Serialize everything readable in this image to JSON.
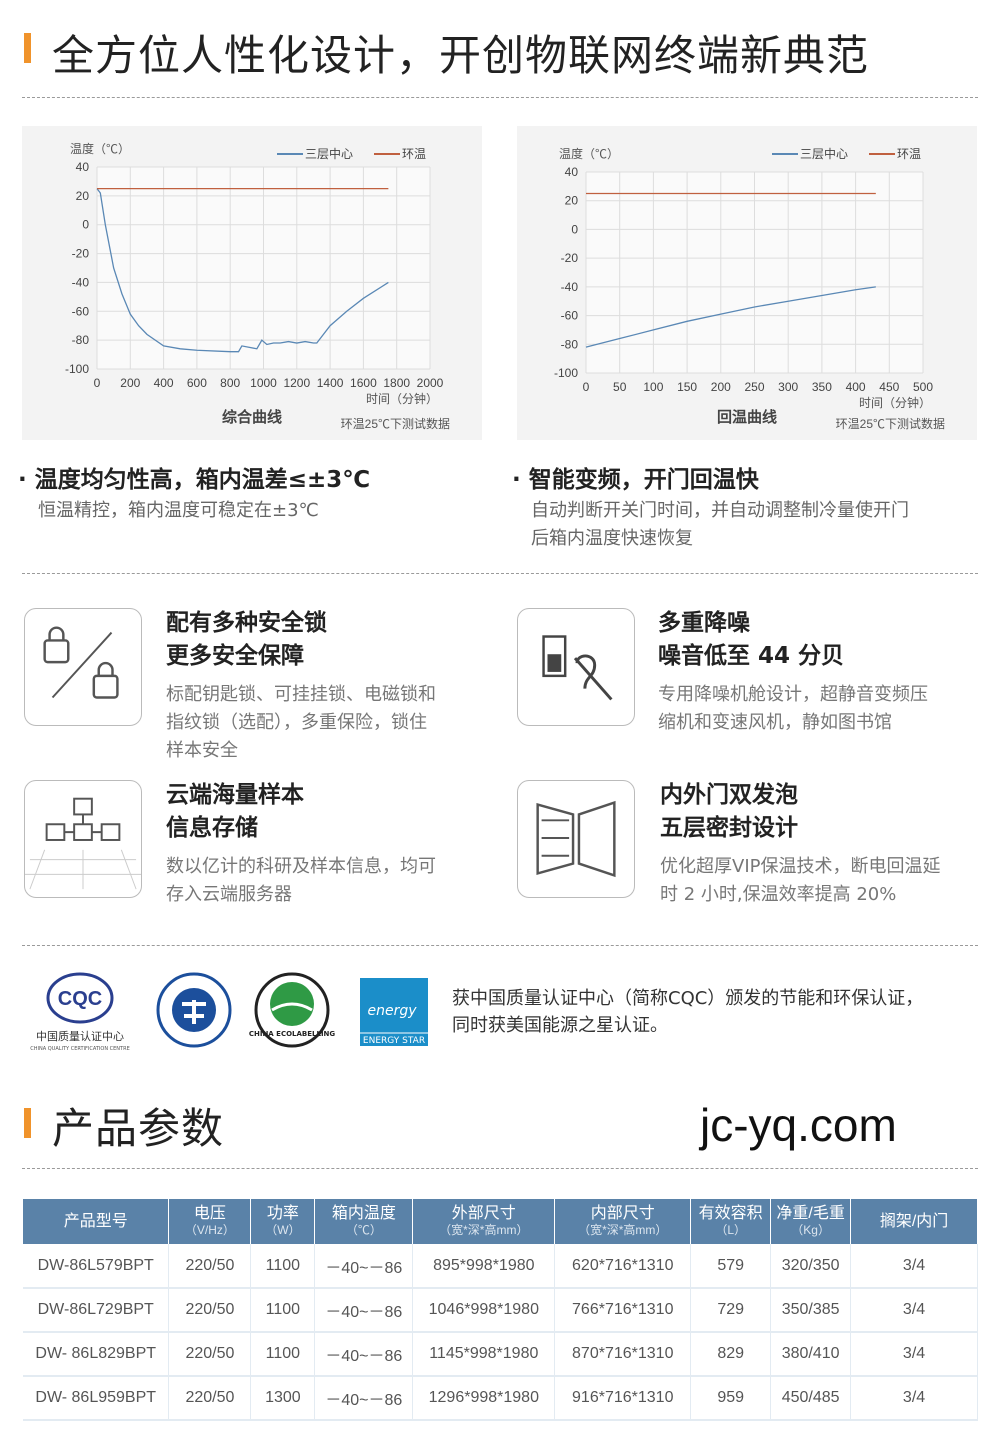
{
  "header": {
    "title": "全方位人性化设计，开创物联网终端新典范"
  },
  "chart_data": [
    {
      "type": "line",
      "title": "综合曲线",
      "note": "环温25℃下测试数据",
      "ylabel": "温度（℃）",
      "xlabel": "时间（分钟）",
      "xlim": [
        0,
        2000
      ],
      "ylim": [
        -100,
        40
      ],
      "xticks": [
        0,
        200,
        400,
        600,
        800,
        1000,
        1200,
        1400,
        1600,
        1800,
        2000
      ],
      "yticks": [
        40,
        20,
        0,
        -20,
        -40,
        -60,
        -80,
        -100
      ],
      "grid": true,
      "legend": "top-right",
      "series": [
        {
          "name": "三层中心",
          "color": "#5a88b5",
          "x": [
            0,
            20,
            50,
            100,
            150,
            200,
            250,
            300,
            400,
            500,
            600,
            800,
            850,
            870,
            960,
            990,
            1020,
            1060,
            1100,
            1150,
            1200,
            1250,
            1300,
            1320,
            1400,
            1500,
            1600,
            1750
          ],
          "y": [
            25,
            22,
            0,
            -30,
            -48,
            -62,
            -70,
            -76,
            -84,
            -86,
            -87,
            -88,
            -88,
            -84,
            -86,
            -80,
            -83,
            -82,
            -82,
            -81,
            -82,
            -81,
            -82,
            -82,
            -70,
            -60,
            -51,
            -40
          ]
        },
        {
          "name": "环温",
          "color": "#c0603f",
          "x": [
            0,
            1750
          ],
          "y": [
            25,
            25
          ]
        }
      ]
    },
    {
      "type": "line",
      "title": "回温曲线",
      "note": "环温25℃下测试数据",
      "ylabel": "温度（℃）",
      "xlabel": "时间（分钟）",
      "xlim": [
        0,
        500
      ],
      "ylim": [
        -100,
        40
      ],
      "xticks": [
        0,
        50,
        100,
        150,
        200,
        250,
        300,
        350,
        400,
        450,
        500
      ],
      "yticks": [
        40,
        20,
        0,
        -20,
        -40,
        -60,
        -80,
        -100
      ],
      "grid": true,
      "legend": "top-right",
      "series": [
        {
          "name": "三层中心",
          "color": "#5a88b5",
          "x": [
            0,
            50,
            100,
            150,
            200,
            250,
            300,
            350,
            400,
            430
          ],
          "y": [
            -82,
            -76,
            -70,
            -64,
            -59,
            -54,
            -50,
            -46,
            -42,
            -40
          ]
        },
        {
          "name": "环温",
          "color": "#c0603f",
          "x": [
            0,
            430
          ],
          "y": [
            25,
            25
          ]
        }
      ]
    }
  ],
  "features": [
    {
      "title": "· 温度均匀性高，箱内温差≤±3℃",
      "desc": [
        "恒温精控，箱内温度可稳定在±3℃"
      ]
    },
    {
      "title": "· 智能变频，开门回温快",
      "desc": [
        "自动判断开关门时间，并自动调整制冷量使开门",
        "后箱内温度快速恢复"
      ]
    }
  ],
  "cards": [
    {
      "icon": "lock-icon",
      "title": [
        "配有多种安全锁",
        "更多安全保障"
      ],
      "desc": [
        "标配钥匙锁、可挂挂锁、电磁锁和",
        "指纹锁（选配），多重保险，锁住",
        "样本安全"
      ]
    },
    {
      "icon": "noise-reduction-icon",
      "title": [
        "多重降噪",
        "噪音低至 44 分贝"
      ],
      "desc": [
        "专用降噪机舱设计，超静音变频压",
        "缩机和变速风机，静如图书馆"
      ]
    },
    {
      "icon": "cloud-storage-icon",
      "title": [
        "云端海量样本",
        "信息存储"
      ],
      "desc": [
        "数以亿计的科研及样本信息，均可",
        "存入云端服务器"
      ]
    },
    {
      "icon": "door-icon",
      "title": [
        "内外门双发泡",
        "五层密封设计"
      ],
      "desc": [
        "优化超厚VIP保温技术，断电回温延",
        "时 2 小时,保温效率提高 20%"
      ]
    }
  ],
  "certs": {
    "logos": [
      "中国质量认证中心",
      "CHINA QUALITY CERTIFICATION CENTRE",
      "CQC",
      "CHINA ECOLABELLING",
      "ENERGY STAR"
    ],
    "text": [
      "获中国质量认证中心（简称CQC）颁发的节能和环保认证，",
      "同时获美国能源之星认证。"
    ]
  },
  "params": {
    "title": "产品参数",
    "headers": [
      [
        "产品型号",
        ""
      ],
      [
        "电压",
        "（V/Hz）"
      ],
      [
        "功率",
        "（W）"
      ],
      [
        "箱内温度",
        "（℃）"
      ],
      [
        "外部尺寸",
        "（宽*深*高mm）"
      ],
      [
        "内部尺寸",
        "（宽*深*高mm）"
      ],
      [
        "有效容积",
        "（L）"
      ],
      [
        "净重/毛重",
        "（Kg）"
      ],
      [
        "搁架/内门",
        ""
      ]
    ],
    "rows": [
      [
        "DW-86L579BPT",
        "220/50",
        "1100",
        "－40~－86",
        "895*998*1980",
        "620*716*1310",
        "579",
        "320/350",
        "3/4"
      ],
      [
        "DW-86L729BPT",
        "220/50",
        "1100",
        "－40~－86",
        "1046*998*1980",
        "766*716*1310",
        "729",
        "350/385",
        "3/4"
      ],
      [
        "DW- 86L829BPT",
        "220/50",
        "1100",
        "－40~－86",
        "1145*998*1980",
        "870*716*1310",
        "829",
        "380/410",
        "3/4"
      ],
      [
        "DW- 86L959BPT",
        "220/50",
        "1300",
        "－40~－86",
        "1296*998*1980",
        "916*716*1310",
        "959",
        "450/485",
        "3/4"
      ]
    ]
  },
  "watermark": "jc-yq.com"
}
